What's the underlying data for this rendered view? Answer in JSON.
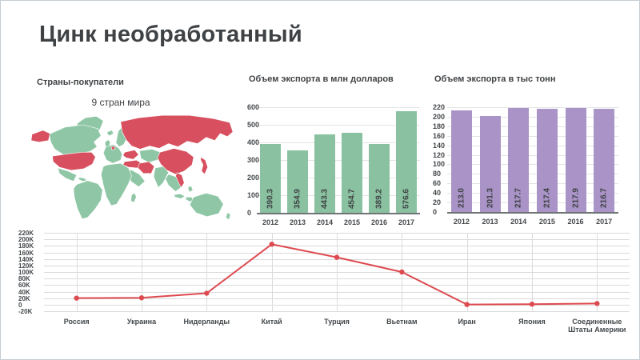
{
  "slide": {
    "title": "Цинк необработанный"
  },
  "map_section": {
    "title": "Страны-покупатели",
    "subtitle": "9 стран мира",
    "base_color": "#8fc7a6",
    "highlight_color": "#d8505f",
    "highlighted_countries": [
      "Россия",
      "Украина",
      "Нидерланды",
      "Китай",
      "Турция",
      "Вьетнам",
      "Иран",
      "Япония",
      "Соединенные Штаты Америки"
    ]
  },
  "chart_data": [
    {
      "type": "bar",
      "title": "Объем экспорта в млн долларов",
      "categories": [
        "2012",
        "2013",
        "2014",
        "2015",
        "2016",
        "2017"
      ],
      "values": [
        390.3,
        354.9,
        443.3,
        454.7,
        389.2,
        576.6
      ],
      "bar_color": "#8ac2a1",
      "ylim": [
        0,
        600
      ],
      "ytick_step": 100,
      "grid": true,
      "value_labels_rotated": true
    },
    {
      "type": "bar",
      "title": "Объем экспорта в тыс тонн",
      "categories": [
        "2012",
        "2013",
        "2014",
        "2015",
        "2016",
        "2017"
      ],
      "values": [
        213.0,
        201.3,
        217.7,
        217.4,
        217.9,
        216.7
      ],
      "bar_color": "#a993c7",
      "ylim": [
        0,
        220
      ],
      "ytick_step": 20,
      "grid": true,
      "value_labels_rotated": true
    },
    {
      "type": "line",
      "title": "",
      "categories": [
        "Россия",
        "Украина",
        "Нидерланды",
        "Китай",
        "Турция",
        "Вьетнам",
        "Иран",
        "Япония",
        "Соединенные Штаты Америки"
      ],
      "values": [
        20000,
        21000,
        35000,
        185000,
        145000,
        100000,
        500,
        1500,
        3500
      ],
      "line_color": "#dd4a4f",
      "ylim": [
        -20000,
        220000
      ],
      "ytick_step": 20000,
      "ytick_suffix": "K",
      "grid": true,
      "markers": true
    }
  ]
}
